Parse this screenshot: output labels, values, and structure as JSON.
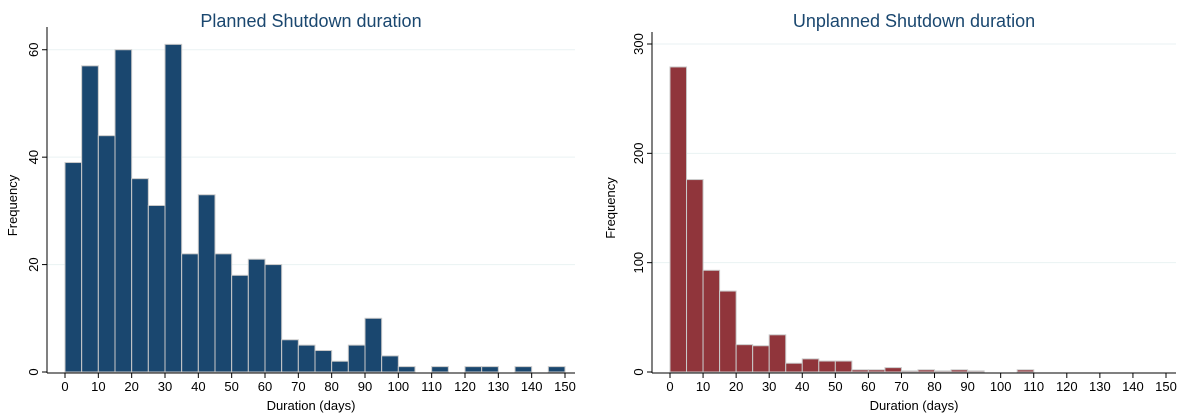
{
  "chart_data": [
    {
      "type": "bar",
      "title": "Planned Shutdown duration",
      "xlabel": "Duration (days)",
      "ylabel": "Frequency",
      "bin_width": 5,
      "x": [
        0,
        5,
        10,
        15,
        20,
        25,
        30,
        35,
        40,
        45,
        50,
        55,
        60,
        65,
        70,
        75,
        80,
        85,
        90,
        95,
        100,
        105,
        110,
        115,
        120,
        125,
        130,
        135,
        140,
        145
      ],
      "values": [
        39,
        57,
        44,
        60,
        36,
        31,
        61,
        22,
        33,
        22,
        18,
        21,
        20,
        6,
        5,
        4,
        2,
        5,
        10,
        3,
        1,
        0,
        1,
        0,
        1,
        1,
        0,
        1,
        0,
        1
      ],
      "xlim": [
        0,
        150
      ],
      "ylim": [
        0,
        62
      ],
      "xticks": [
        0,
        10,
        20,
        30,
        40,
        50,
        60,
        70,
        80,
        90,
        100,
        110,
        120,
        130,
        140,
        150
      ],
      "yticks": [
        0,
        20,
        40,
        60
      ],
      "grid": true,
      "color": "#1a476f"
    },
    {
      "type": "bar",
      "title": "Unplanned Shutdown duration",
      "xlabel": "Duration (days)",
      "ylabel": "Frequency",
      "bin_width": 5,
      "x": [
        0,
        5,
        10,
        15,
        20,
        25,
        30,
        35,
        40,
        45,
        50,
        55,
        60,
        65,
        70,
        75,
        80,
        85,
        90,
        95,
        100,
        105,
        110,
        115,
        120,
        125,
        130,
        135,
        140,
        145
      ],
      "values": [
        279,
        176,
        93,
        74,
        25,
        24,
        34,
        8,
        12,
        10,
        10,
        2,
        2,
        4,
        1,
        2,
        1,
        2,
        1,
        0,
        0,
        2,
        0,
        0,
        0,
        0,
        0,
        0,
        0,
        0
      ],
      "xlim": [
        0,
        150
      ],
      "ylim": [
        0,
        300
      ],
      "xticks": [
        0,
        10,
        20,
        30,
        40,
        50,
        60,
        70,
        80,
        90,
        100,
        110,
        120,
        130,
        140,
        150
      ],
      "yticks": [
        0,
        100,
        200,
        300
      ],
      "grid": true,
      "color": "#90353b"
    }
  ]
}
